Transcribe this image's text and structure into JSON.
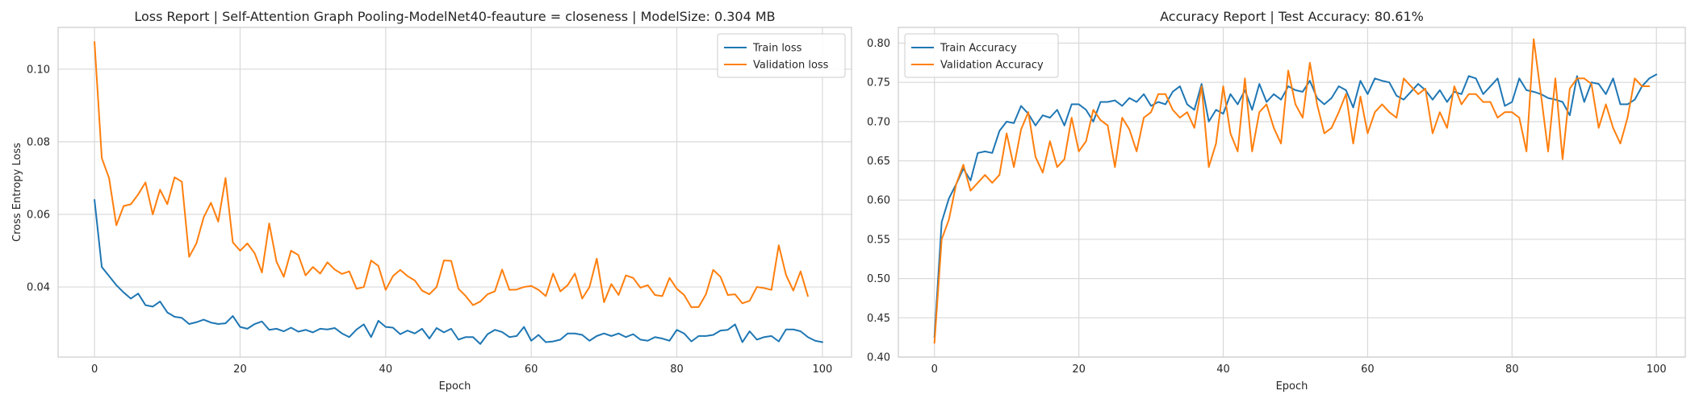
{
  "chart_data": [
    {
      "type": "line",
      "title": "Loss Report | Self-Attention Graph Pooling-ModelNet40-feauture = closeness | ModelSize: 0.304 MB",
      "xlabel": "Epoch",
      "ylabel": "Cross Entropy Loss",
      "xlim": [
        -5,
        104
      ],
      "ylim": [
        0.0207,
        0.1115
      ],
      "xticks": [
        0,
        20,
        40,
        60,
        80,
        100
      ],
      "xtick_labels": [
        "0",
        "20",
        "40",
        "60",
        "80",
        "100"
      ],
      "yticks": [
        0.04,
        0.06,
        0.08,
        0.1
      ],
      "ytick_labels": [
        "0.04",
        "0.06",
        "0.08",
        "0.10"
      ],
      "grid": true,
      "legend": "upper right",
      "series": [
        {
          "name": "Train loss",
          "color": "#1f77b4",
          "values": [
            0.064,
            0.0455,
            0.043,
            0.0405,
            0.0385,
            0.0368,
            0.0382,
            0.035,
            0.0346,
            0.036,
            0.033,
            0.0318,
            0.0315,
            0.0298,
            0.0303,
            0.031,
            0.0302,
            0.0298,
            0.03,
            0.032,
            0.029,
            0.0285,
            0.0298,
            0.0305,
            0.0282,
            0.0285,
            0.0278,
            0.0288,
            0.0277,
            0.0282,
            0.0275,
            0.0285,
            0.0283,
            0.0287,
            0.0272,
            0.0262,
            0.0283,
            0.0297,
            0.0262,
            0.0307,
            0.029,
            0.0288,
            0.027,
            0.028,
            0.0272,
            0.0285,
            0.0258,
            0.0287,
            0.0275,
            0.0285,
            0.0255,
            0.0262,
            0.0262,
            0.0243,
            0.027,
            0.0282,
            0.0276,
            0.0262,
            0.0265,
            0.029,
            0.0252,
            0.0268,
            0.0248,
            0.025,
            0.0255,
            0.0272,
            0.0272,
            0.0268,
            0.0252,
            0.0265,
            0.0272,
            0.0265,
            0.0272,
            0.0262,
            0.027,
            0.0255,
            0.0252,
            0.0262,
            0.0258,
            0.0252,
            0.0282,
            0.0272,
            0.025,
            0.0265,
            0.0265,
            0.0268,
            0.028,
            0.0282,
            0.0297,
            0.0248,
            0.0278,
            0.0255,
            0.0262,
            0.0265,
            0.025,
            0.0283,
            0.0283,
            0.0278,
            0.0262,
            0.0252,
            0.0248
          ]
        },
        {
          "name": "Validation loss",
          "color": "#ff7f0e",
          "values": [
            0.1075,
            0.0755,
            0.07,
            0.057,
            0.0623,
            0.0628,
            0.0655,
            0.0688,
            0.06,
            0.0668,
            0.0628,
            0.0702,
            0.069,
            0.0483,
            0.052,
            0.0592,
            0.0632,
            0.058,
            0.07,
            0.0523,
            0.05,
            0.052,
            0.0493,
            0.044,
            0.0575,
            0.047,
            0.0428,
            0.05,
            0.0488,
            0.0432,
            0.0455,
            0.0437,
            0.0468,
            0.0448,
            0.0436,
            0.0443,
            0.0395,
            0.04,
            0.0473,
            0.0458,
            0.0392,
            0.043,
            0.0447,
            0.043,
            0.0418,
            0.039,
            0.038,
            0.04,
            0.0473,
            0.0472,
            0.0395,
            0.0375,
            0.035,
            0.036,
            0.038,
            0.0388,
            0.0448,
            0.0392,
            0.0393,
            0.04,
            0.0403,
            0.0392,
            0.0375,
            0.0437,
            0.0388,
            0.0405,
            0.0437,
            0.0368,
            0.04,
            0.0478,
            0.0358,
            0.0408,
            0.0378,
            0.0432,
            0.0425,
            0.0398,
            0.0405,
            0.0378,
            0.0375,
            0.0425,
            0.0395,
            0.0378,
            0.0344,
            0.0345,
            0.038,
            0.0447,
            0.0428,
            0.0378,
            0.038,
            0.0355,
            0.0362,
            0.04,
            0.0397,
            0.0392,
            0.0515,
            0.0433,
            0.039,
            0.0443,
            0.0375
          ]
        }
      ]
    },
    {
      "type": "line",
      "title": "Accuracy Report | Test Accuracy: 80.61%",
      "xlabel": "Epoch",
      "ylabel": "",
      "xlim": [
        -5,
        104
      ],
      "ylim": [
        0.4,
        0.82
      ],
      "xticks": [
        0,
        20,
        40,
        60,
        80,
        100
      ],
      "xtick_labels": [
        "0",
        "20",
        "40",
        "60",
        "80",
        "100"
      ],
      "yticks": [
        0.4,
        0.45,
        0.5,
        0.55,
        0.6,
        0.65,
        0.7,
        0.75,
        0.8
      ],
      "ytick_labels": [
        "0.40",
        "0.45",
        "0.50",
        "0.55",
        "0.60",
        "0.65",
        "0.70",
        "0.75",
        "0.80"
      ],
      "grid": true,
      "legend": "upper left",
      "series": [
        {
          "name": "Train Accuracy",
          "color": "#1f77b4",
          "values": [
            0.425,
            0.572,
            0.602,
            0.62,
            0.64,
            0.625,
            0.66,
            0.662,
            0.66,
            0.688,
            0.7,
            0.698,
            0.72,
            0.71,
            0.695,
            0.708,
            0.705,
            0.715,
            0.695,
            0.722,
            0.722,
            0.715,
            0.7,
            0.725,
            0.725,
            0.727,
            0.72,
            0.73,
            0.725,
            0.735,
            0.72,
            0.725,
            0.722,
            0.738,
            0.745,
            0.722,
            0.715,
            0.748,
            0.7,
            0.715,
            0.71,
            0.735,
            0.722,
            0.74,
            0.715,
            0.748,
            0.725,
            0.735,
            0.728,
            0.745,
            0.74,
            0.738,
            0.752,
            0.73,
            0.722,
            0.73,
            0.745,
            0.74,
            0.718,
            0.752,
            0.735,
            0.755,
            0.752,
            0.75,
            0.733,
            0.728,
            0.738,
            0.748,
            0.74,
            0.728,
            0.74,
            0.725,
            0.738,
            0.735,
            0.758,
            0.755,
            0.735,
            0.745,
            0.755,
            0.72,
            0.725,
            0.755,
            0.74,
            0.738,
            0.735,
            0.73,
            0.728,
            0.725,
            0.708,
            0.758,
            0.725,
            0.75,
            0.748,
            0.735,
            0.755,
            0.722,
            0.722,
            0.728,
            0.745,
            0.755,
            0.76
          ]
        },
        {
          "name": "Validation Accuracy",
          "color": "#ff7f0e",
          "values": [
            0.418,
            0.55,
            0.575,
            0.62,
            0.645,
            0.612,
            0.622,
            0.632,
            0.622,
            0.632,
            0.685,
            0.642,
            0.69,
            0.712,
            0.655,
            0.635,
            0.675,
            0.642,
            0.652,
            0.705,
            0.662,
            0.675,
            0.715,
            0.702,
            0.695,
            0.642,
            0.705,
            0.69,
            0.662,
            0.705,
            0.712,
            0.735,
            0.735,
            0.715,
            0.705,
            0.712,
            0.692,
            0.745,
            0.642,
            0.672,
            0.745,
            0.685,
            0.662,
            0.755,
            0.662,
            0.712,
            0.722,
            0.692,
            0.672,
            0.765,
            0.722,
            0.705,
            0.775,
            0.722,
            0.685,
            0.692,
            0.712,
            0.735,
            0.672,
            0.732,
            0.685,
            0.712,
            0.722,
            0.712,
            0.705,
            0.755,
            0.745,
            0.735,
            0.742,
            0.685,
            0.712,
            0.692,
            0.745,
            0.722,
            0.735,
            0.735,
            0.725,
            0.725,
            0.705,
            0.712,
            0.712,
            0.705,
            0.662,
            0.805,
            0.735,
            0.662,
            0.755,
            0.652,
            0.742,
            0.755,
            0.755,
            0.748,
            0.692,
            0.722,
            0.692,
            0.672,
            0.705,
            0.755,
            0.745,
            0.745
          ]
        }
      ]
    }
  ]
}
